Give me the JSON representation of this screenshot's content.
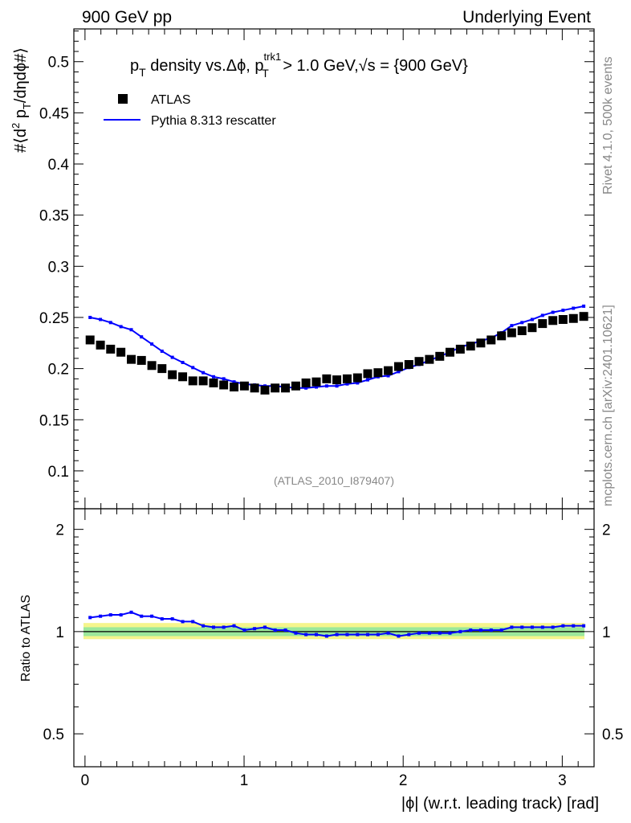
{
  "header": {
    "left": "900 GeV pp",
    "right": "Underlying Event"
  },
  "side": {
    "rivet": "Rivet 4.1.0,  500k events",
    "mcplots": "mcplots.cern.ch [arXiv:2401.10621]"
  },
  "chart_data": {
    "type": "scatter",
    "title_parts": {
      "p": "p",
      "t_sub": "T",
      "mid": " density vs.Δϕ, p",
      "trk_sup": "trk1",
      "t_sub2": "T",
      "rest": " > 1.0 GeV,",
      "sqrt": "√s",
      "tail": " = {900 GeV}"
    },
    "ylabel_parts": {
      "a": "#⟨d",
      "sup2": "2",
      "b": " p",
      "t_sub": "T",
      "c": "/dηdϕ#⟩"
    },
    "xlabel": "|ϕ| (w.r.t. leading track) [rad]",
    "ratio_ylabel": "Ratio to ATLAS",
    "analysis_tag": "(ATLAS_2010_I879407)",
    "xlim": [
      -0.07,
      3.2
    ],
    "ylim": [
      0.063,
      0.532
    ],
    "ratio_ylim": [
      0.4,
      2.3
    ],
    "xticks": [
      0,
      1,
      2,
      3
    ],
    "xtick_labels": [
      "0",
      "1",
      "2",
      "3"
    ],
    "yticks": [
      0.1,
      0.15,
      0.2,
      0.25,
      0.3,
      0.35,
      0.4,
      0.45,
      0.5
    ],
    "ytick_labels": [
      "0.1",
      "0.15",
      "0.2",
      "0.25",
      "0.3",
      "0.35",
      "0.4",
      "0.45",
      "0.5"
    ],
    "ratio_yticks": [
      0.5,
      1,
      2
    ],
    "ratio_ytick_labels": [
      "0.5",
      "1",
      "2"
    ],
    "series": [
      {
        "name": "ATLAS",
        "marker": "square",
        "color": "#000000",
        "x": [
          0.032,
          0.097,
          0.161,
          0.226,
          0.291,
          0.355,
          0.42,
          0.484,
          0.549,
          0.614,
          0.678,
          0.743,
          0.808,
          0.872,
          0.937,
          1.002,
          1.066,
          1.131,
          1.195,
          1.26,
          1.325,
          1.389,
          1.454,
          1.519,
          1.583,
          1.648,
          1.713,
          1.777,
          1.842,
          1.906,
          1.971,
          2.036,
          2.1,
          2.165,
          2.23,
          2.294,
          2.359,
          2.424,
          2.488,
          2.553,
          2.618,
          2.682,
          2.747,
          2.811,
          2.876,
          2.941,
          3.005,
          3.07,
          3.135
        ],
        "values": [
          0.228,
          0.223,
          0.219,
          0.216,
          0.209,
          0.208,
          0.203,
          0.2,
          0.194,
          0.192,
          0.188,
          0.188,
          0.186,
          0.184,
          0.182,
          0.183,
          0.181,
          0.179,
          0.181,
          0.181,
          0.183,
          0.186,
          0.187,
          0.19,
          0.189,
          0.19,
          0.191,
          0.195,
          0.196,
          0.198,
          0.202,
          0.204,
          0.207,
          0.209,
          0.212,
          0.216,
          0.219,
          0.222,
          0.225,
          0.228,
          0.232,
          0.235,
          0.237,
          0.24,
          0.244,
          0.247,
          0.248,
          0.249,
          0.251
        ]
      },
      {
        "name": "Pythia 8.313 rescatter",
        "marker": "line",
        "color": "#0000ff",
        "x": [
          0.032,
          0.097,
          0.161,
          0.226,
          0.291,
          0.355,
          0.42,
          0.484,
          0.549,
          0.614,
          0.678,
          0.743,
          0.808,
          0.872,
          0.937,
          1.002,
          1.066,
          1.131,
          1.195,
          1.26,
          1.325,
          1.389,
          1.454,
          1.519,
          1.583,
          1.648,
          1.713,
          1.777,
          1.842,
          1.906,
          1.971,
          2.036,
          2.1,
          2.165,
          2.23,
          2.294,
          2.359,
          2.424,
          2.488,
          2.553,
          2.618,
          2.682,
          2.747,
          2.811,
          2.876,
          2.941,
          3.005,
          3.07,
          3.135
        ],
        "values": [
          0.25,
          0.248,
          0.245,
          0.241,
          0.238,
          0.231,
          0.224,
          0.217,
          0.211,
          0.206,
          0.201,
          0.196,
          0.192,
          0.19,
          0.187,
          0.185,
          0.184,
          0.183,
          0.183,
          0.182,
          0.181,
          0.181,
          0.182,
          0.183,
          0.183,
          0.185,
          0.186,
          0.189,
          0.192,
          0.193,
          0.197,
          0.201,
          0.204,
          0.208,
          0.212,
          0.216,
          0.221,
          0.224,
          0.227,
          0.23,
          0.235,
          0.242,
          0.245,
          0.248,
          0.252,
          0.255,
          0.257,
          0.259,
          0.261
        ]
      }
    ],
    "ratio": {
      "x": [
        0.032,
        0.097,
        0.161,
        0.226,
        0.291,
        0.355,
        0.42,
        0.484,
        0.549,
        0.614,
        0.678,
        0.743,
        0.808,
        0.872,
        0.937,
        1.002,
        1.066,
        1.131,
        1.195,
        1.26,
        1.325,
        1.389,
        1.454,
        1.519,
        1.583,
        1.648,
        1.713,
        1.777,
        1.842,
        1.906,
        1.971,
        2.036,
        2.1,
        2.165,
        2.23,
        2.294,
        2.359,
        2.424,
        2.488,
        2.553,
        2.618,
        2.682,
        2.747,
        2.811,
        2.876,
        2.941,
        3.005,
        3.07,
        3.135
      ],
      "values": [
        1.1,
        1.11,
        1.12,
        1.12,
        1.14,
        1.11,
        1.11,
        1.09,
        1.09,
        1.07,
        1.07,
        1.04,
        1.03,
        1.03,
        1.04,
        1.01,
        1.02,
        1.03,
        1.01,
        1.01,
        0.99,
        0.98,
        0.98,
        0.97,
        0.98,
        0.98,
        0.98,
        0.98,
        0.98,
        0.99,
        0.97,
        0.98,
        0.99,
        0.99,
        0.99,
        0.99,
        1.0,
        1.01,
        1.01,
        1.01,
        1.01,
        1.03,
        1.03,
        1.03,
        1.03,
        1.03,
        1.04,
        1.04,
        1.04
      ]
    },
    "ratio_band": {
      "inner": [
        0.97,
        1.03
      ],
      "outer": [
        0.95,
        1.06
      ]
    },
    "legend": [
      {
        "label": "ATLAS",
        "marker": "square"
      },
      {
        "label": "Pythia 8.313 rescatter",
        "marker": "line"
      }
    ],
    "legend_position": "top-left"
  }
}
